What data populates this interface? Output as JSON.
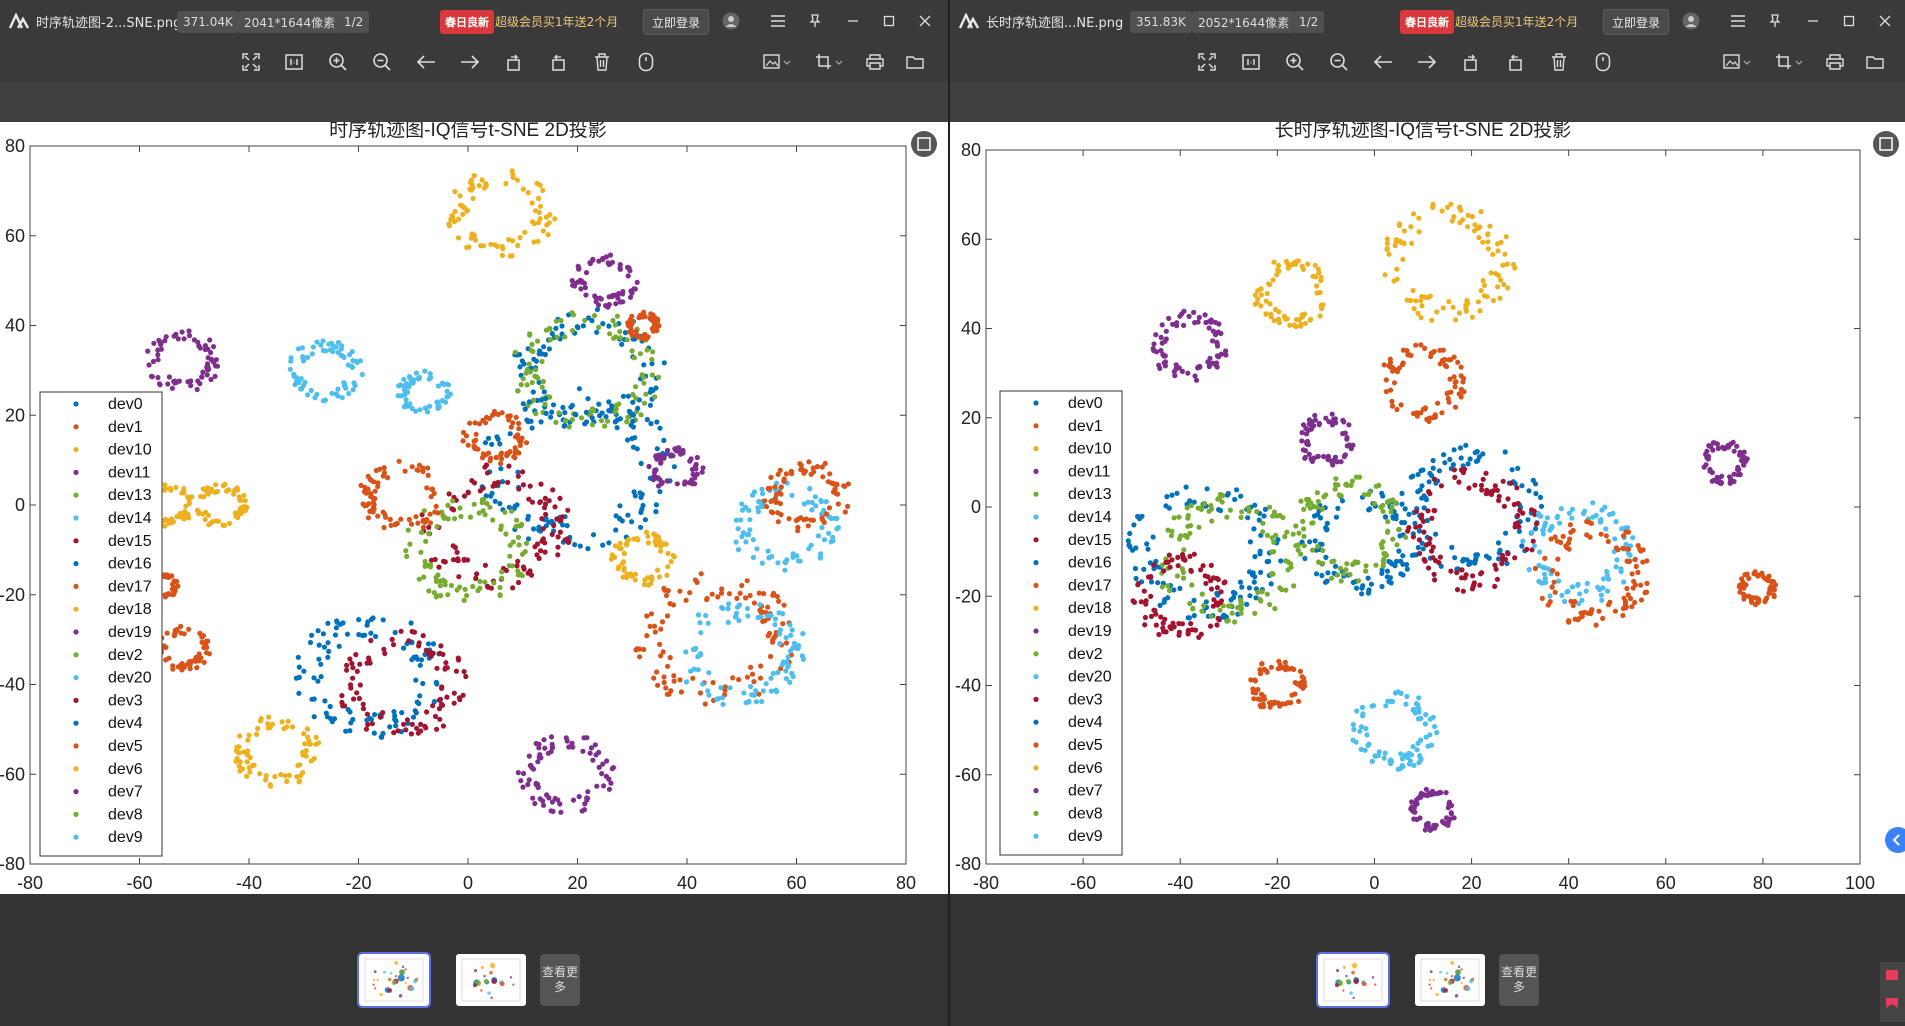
{
  "left": {
    "filename": "时序轨迹图-2...SNE.png",
    "filesize": "371.04K",
    "dimensions": "2041*1644像素",
    "page": "1/2",
    "promo_badge": "春日良新",
    "promo_text": "超级会员买1年送2个月",
    "login": "立即登录",
    "more": "查看更多",
    "chart_data": {
      "type": "scatter",
      "title": "时序轨迹图-IQ信号t-SNE 2D投影",
      "xlim": [
        -80,
        80
      ],
      "ylim": [
        -80,
        80
      ],
      "x_ticks": [
        "-80",
        "-60",
        "-40",
        "-20",
        "0",
        "20",
        "40",
        "60",
        "80"
      ],
      "y_ticks": [
        "80",
        "60",
        "40",
        "20",
        "0",
        "-20",
        "-40",
        "-60",
        "-80"
      ],
      "legend_placement": "left",
      "clusters": [
        {
          "x": 6,
          "y": 65,
          "r": 10,
          "c": "#EDB120"
        },
        {
          "x": -52,
          "y": 32,
          "r": 7,
          "c": "#7E2F8E"
        },
        {
          "x": -26,
          "y": 30,
          "r": 7,
          "c": "#4DBEEE"
        },
        {
          "x": -8,
          "y": 25,
          "r": 5,
          "c": "#4DBEEE"
        },
        {
          "x": 22,
          "y": 30,
          "r": 14,
          "c": "#0072BD"
        },
        {
          "x": 22,
          "y": 30,
          "r": 14,
          "c": "#77AC30"
        },
        {
          "x": 20,
          "y": 8,
          "r": 18,
          "c": "#0072BD"
        },
        {
          "x": 5,
          "y": -5,
          "r": 14,
          "c": "#A2142F"
        },
        {
          "x": 0,
          "y": -10,
          "r": 12,
          "c": "#77AC30"
        },
        {
          "x": -12,
          "y": 2,
          "r": 8,
          "c": "#D95319"
        },
        {
          "x": -18,
          "y": -38,
          "r": 14,
          "c": "#0072BD"
        },
        {
          "x": -12,
          "y": -40,
          "r": 12,
          "c": "#A2142F"
        },
        {
          "x": 18,
          "y": -60,
          "r": 9,
          "c": "#7E2F8E"
        },
        {
          "x": -52,
          "y": -32,
          "r": 5,
          "c": "#D95319"
        },
        {
          "x": -56,
          "y": -18,
          "r": 3,
          "c": "#D95319"
        },
        {
          "x": -55,
          "y": 0,
          "r": 5,
          "c": "#EDB120"
        },
        {
          "x": -45,
          "y": 0,
          "r": 5,
          "c": "#EDB120"
        },
        {
          "x": -35,
          "y": -55,
          "r": 8,
          "c": "#EDB120"
        },
        {
          "x": 32,
          "y": -12,
          "r": 6,
          "c": "#EDB120"
        },
        {
          "x": 58,
          "y": -5,
          "r": 10,
          "c": "#4DBEEE"
        },
        {
          "x": 62,
          "y": 2,
          "r": 8,
          "c": "#D95319"
        },
        {
          "x": 45,
          "y": -30,
          "r": 15,
          "c": "#D95319"
        },
        {
          "x": 50,
          "y": -33,
          "r": 12,
          "c": "#4DBEEE"
        },
        {
          "x": 25,
          "y": 50,
          "r": 6,
          "c": "#7E2F8E"
        },
        {
          "x": 38,
          "y": 8,
          "r": 5,
          "c": "#7E2F8E"
        },
        {
          "x": 5,
          "y": 15,
          "r": 6,
          "c": "#D95319"
        },
        {
          "x": 32,
          "y": 40,
          "r": 3,
          "c": "#D95319"
        }
      ]
    }
  },
  "right": {
    "filename": "长时序轨迹图...NE.png",
    "filesize": "351.83K",
    "dimensions": "2052*1644像素",
    "page": "1/2",
    "promo_badge": "春日良新",
    "promo_text": "超级会员买1年送2个月",
    "login": "立即登录",
    "more": "查看更多",
    "chart_data": {
      "type": "scatter",
      "title": "长时序轨迹图-IQ信号t-SNE 2D投影",
      "xlim": [
        -80,
        100
      ],
      "ylim": [
        -80,
        80
      ],
      "x_ticks": [
        "-80",
        "-60",
        "-40",
        "-20",
        "0",
        "20",
        "40",
        "60",
        "80",
        "100"
      ],
      "y_ticks": [
        "80",
        "60",
        "40",
        "20",
        "0",
        "-20",
        "-40",
        "-60",
        "-80"
      ],
      "legend_placement": "left",
      "clusters": [
        {
          "x": -38,
          "y": 36,
          "r": 8,
          "c": "#7E2F8E"
        },
        {
          "x": -17,
          "y": 48,
          "r": 8,
          "c": "#EDB120"
        },
        {
          "x": 15,
          "y": 55,
          "r": 14,
          "c": "#EDB120"
        },
        {
          "x": 10,
          "y": 28,
          "r": 9,
          "c": "#D95319"
        },
        {
          "x": -35,
          "y": -10,
          "r": 16,
          "c": "#0072BD"
        },
        {
          "x": -30,
          "y": -12,
          "r": 15,
          "c": "#77AC30"
        },
        {
          "x": -40,
          "y": -20,
          "r": 10,
          "c": "#A2142F"
        },
        {
          "x": -3,
          "y": -8,
          "r": 12,
          "c": "#0072BD"
        },
        {
          "x": -5,
          "y": -5,
          "r": 12,
          "c": "#77AC30"
        },
        {
          "x": -10,
          "y": 15,
          "r": 6,
          "c": "#7E2F8E"
        },
        {
          "x": 20,
          "y": 0,
          "r": 15,
          "c": "#0072BD"
        },
        {
          "x": 20,
          "y": -5,
          "r": 14,
          "c": "#A2142F"
        },
        {
          "x": 42,
          "y": -10,
          "r": 12,
          "c": "#4DBEEE"
        },
        {
          "x": 45,
          "y": -15,
          "r": 12,
          "c": "#D95319"
        },
        {
          "x": 4,
          "y": -50,
          "r": 9,
          "c": "#4DBEEE"
        },
        {
          "x": 12,
          "y": -68,
          "r": 5,
          "c": "#7E2F8E"
        },
        {
          "x": 72,
          "y": 10,
          "r": 5,
          "c": "#7E2F8E"
        },
        {
          "x": 79,
          "y": -18,
          "r": 4,
          "c": "#D95319"
        },
        {
          "x": -20,
          "y": -40,
          "r": 6,
          "c": "#D95319"
        }
      ]
    }
  },
  "legend_entries": [
    "dev0",
    "dev1",
    "dev10",
    "dev11",
    "dev13",
    "dev14",
    "dev15",
    "dev16",
    "dev17",
    "dev18",
    "dev19",
    "dev2",
    "dev20",
    "dev3",
    "dev4",
    "dev5",
    "dev6",
    "dev7",
    "dev8",
    "dev9"
  ],
  "legend_colors": [
    "#0072BD",
    "#D95319",
    "#EDB120",
    "#7E2F8E",
    "#77AC30",
    "#4DBEEE",
    "#A2142F",
    "#0072BD",
    "#D95319",
    "#EDB120",
    "#7E2F8E",
    "#77AC30",
    "#4DBEEE",
    "#A2142F",
    "#0072BD",
    "#D95319",
    "#EDB120",
    "#7E2F8E",
    "#77AC30",
    "#4DBEEE"
  ],
  "toolbar_icons": [
    "fit-screen-icon",
    "actual-size-icon",
    "zoom-in-icon",
    "zoom-out-icon",
    "previous-icon",
    "next-icon",
    "rotate-left-icon",
    "rotate-right-icon",
    "delete-icon",
    "info-icon",
    "edit-image-icon",
    "crop-icon",
    "print-icon",
    "folder-icon"
  ]
}
